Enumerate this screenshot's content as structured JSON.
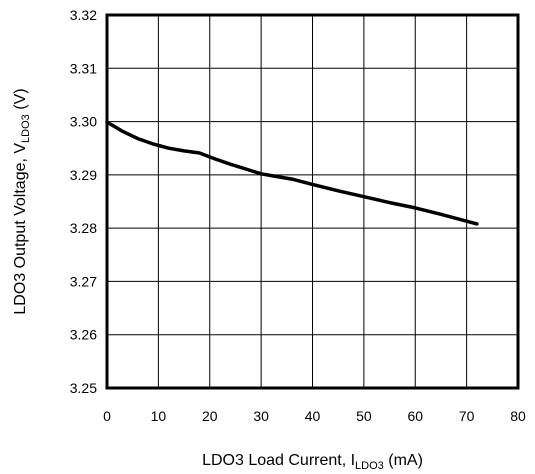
{
  "chart_data": {
    "type": "line",
    "title": "",
    "xlabel": {
      "main": "LDO3 Load Current, I",
      "sub": "LDO3",
      "suffix": " (mA)"
    },
    "ylabel": {
      "main": "LDO3 Output Voltage, V",
      "sub": "LDO3",
      "suffix": " (V)"
    },
    "xlim": [
      0,
      80
    ],
    "ylim": [
      3.25,
      3.32
    ],
    "xticks": [
      0,
      10,
      20,
      30,
      40,
      50,
      60,
      70,
      80
    ],
    "yticks": [
      3.25,
      3.26,
      3.27,
      3.28,
      3.29,
      3.3,
      3.31,
      3.32
    ],
    "xtick_labels": [
      "0",
      "10",
      "20",
      "30",
      "40",
      "50",
      "60",
      "70",
      "80"
    ],
    "ytick_labels": [
      "3.25",
      "3.26",
      "3.27",
      "3.28",
      "3.29",
      "3.30",
      "3.31",
      "3.32"
    ],
    "grid": true,
    "legend": false,
    "series": [
      {
        "color": "#000000",
        "x": [
          0,
          3,
          6,
          9,
          12,
          15,
          18,
          21,
          24,
          27,
          30,
          33,
          36,
          40,
          45,
          50,
          55,
          60,
          65,
          70,
          72
        ],
        "y": [
          3.2999,
          3.2982,
          3.2968,
          3.2958,
          3.295,
          3.2945,
          3.2941,
          3.293,
          3.292,
          3.2911,
          3.2902,
          3.2897,
          3.2892,
          3.2882,
          3.287,
          3.2859,
          3.2848,
          3.2838,
          3.2826,
          3.2813,
          3.2808
        ]
      }
    ]
  }
}
